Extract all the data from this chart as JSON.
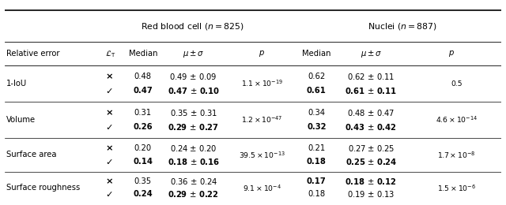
{
  "figsize": [
    6.4,
    2.6
  ],
  "dpi": 100,
  "rbc_header": "Red blood cell ($n = 825$)",
  "nuc_header": "Nuclei ($n = 887$)",
  "subheaders": [
    "Relative error",
    "$\\mathcal{L}_{\\mathrm{T}}$",
    "Median",
    "$\\mu \\pm \\sigma$",
    "$p$",
    "Median",
    "$\\mu \\pm \\sigma$",
    "$p$"
  ],
  "rows": [
    {
      "label": "1-IoU",
      "cross_med_rbc": "0.48",
      "cross_mu_rbc": "0.49 $\\pm$ 0.09",
      "check_med_rbc": "0.47",
      "check_mu_rbc": "0.47 $\\pm$ 0.10",
      "cross_med_rbc_bold": false,
      "cross_mu_rbc_bold": false,
      "check_med_rbc_bold": true,
      "check_mu_rbc_bold": true,
      "p_rbc": "$1.1 \\times 10^{-19}$",
      "cross_med_nuc": "0.62",
      "cross_mu_nuc": "0.62 $\\pm$ 0.11",
      "check_med_nuc": "0.61",
      "check_mu_nuc": "0.61 $\\pm$ 0.11",
      "cross_med_nuc_bold": false,
      "cross_mu_nuc_bold": false,
      "check_med_nuc_bold": true,
      "check_mu_nuc_bold": true,
      "p_nuc": "0.5"
    },
    {
      "label": "Volume",
      "cross_med_rbc": "0.31",
      "cross_mu_rbc": "0.35 $\\pm$ 0.31",
      "check_med_rbc": "0.26",
      "check_mu_rbc": "0.29 $\\pm$ 0.27",
      "cross_med_rbc_bold": false,
      "cross_mu_rbc_bold": false,
      "check_med_rbc_bold": true,
      "check_mu_rbc_bold": true,
      "p_rbc": "$1.2 \\times 10^{-47}$",
      "cross_med_nuc": "0.34",
      "cross_mu_nuc": "0.48 $\\pm$ 0.47",
      "check_med_nuc": "0.32",
      "check_mu_nuc": "0.43 $\\pm$ 0.42",
      "cross_med_nuc_bold": false,
      "cross_mu_nuc_bold": false,
      "check_med_nuc_bold": true,
      "check_mu_nuc_bold": true,
      "p_nuc": "$4.6 \\times 10^{-14}$"
    },
    {
      "label": "Surface area",
      "cross_med_rbc": "0.20",
      "cross_mu_rbc": "0.24 $\\pm$ 0.20",
      "check_med_rbc": "0.14",
      "check_mu_rbc": "0.18 $\\pm$ 0.16",
      "cross_med_rbc_bold": false,
      "cross_mu_rbc_bold": false,
      "check_med_rbc_bold": true,
      "check_mu_rbc_bold": true,
      "p_rbc": "$39.5 \\times 10^{-13}$",
      "cross_med_nuc": "0.21",
      "cross_mu_nuc": "0.27 $\\pm$ 0.25",
      "check_med_nuc": "0.18",
      "check_mu_nuc": "0.25 $\\pm$ 0.24",
      "cross_med_nuc_bold": false,
      "cross_mu_nuc_bold": false,
      "check_med_nuc_bold": true,
      "check_mu_nuc_bold": true,
      "p_nuc": "$1.7 \\times 10^{-8}$"
    },
    {
      "label": "Surface roughness",
      "cross_med_rbc": "0.35",
      "cross_mu_rbc": "0.36 $\\pm$ 0.24",
      "check_med_rbc": "0.24",
      "check_mu_rbc": "0.29 $\\pm$ 0.22",
      "cross_med_rbc_bold": false,
      "cross_mu_rbc_bold": false,
      "check_med_rbc_bold": true,
      "check_mu_rbc_bold": true,
      "p_rbc": "$9.1 \\times 10^{-4}$",
      "cross_med_nuc": "0.17",
      "cross_mu_nuc": "0.18 $\\pm$ 0.12",
      "check_med_nuc": "0.18",
      "check_mu_nuc": "0.19 $\\pm$ 0.13",
      "cross_med_nuc_bold": true,
      "cross_mu_nuc_bold": true,
      "check_med_nuc_bold": false,
      "check_mu_nuc_bold": false,
      "p_nuc": "$1.5 \\times 10^{-6}$"
    }
  ],
  "line_lw_thick": 1.2,
  "line_lw_thin": 0.6,
  "line_lw_row": 0.5,
  "fs_base": 7.2,
  "fs_header": 7.8
}
